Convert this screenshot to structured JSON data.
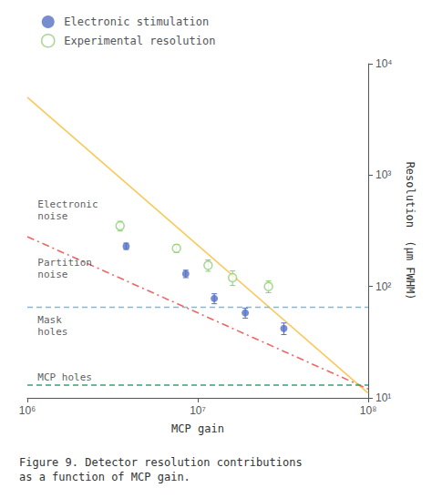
{
  "chart_data": {
    "type": "scatter",
    "log": true,
    "xlabel": "MCP gain",
    "ylabel": "Resolution  (μm FWHM)",
    "caption": "Figure 9. Detector resolution contributions\nas a function of MCP gain.",
    "xlim": [
      1000000,
      100000000
    ],
    "ylim": [
      10,
      10000
    ],
    "xticks": [
      {
        "value": 1000000,
        "label": "10⁶"
      },
      {
        "value": 10000000,
        "label": "10⁷"
      },
      {
        "value": 100000000,
        "label": "10⁸"
      }
    ],
    "yticks": [
      {
        "value": 10,
        "label": "10¹"
      },
      {
        "value": 100,
        "label": "10²"
      },
      {
        "value": 1000,
        "label": "10³"
      },
      {
        "value": 10000,
        "label": "10⁴"
      }
    ],
    "grid": false,
    "legend": "upper left",
    "series": [
      {
        "name": "Electronic stimulation",
        "type": "scatter",
        "marker": "circle",
        "x": [
          3800000,
          8500000,
          12500000,
          19000000,
          32000000
        ],
        "values": [
          230,
          130,
          78,
          58,
          42
        ],
        "yerr": [
          15,
          10,
          8,
          6,
          5
        ]
      },
      {
        "name": "Experimental resolution",
        "type": "scatter",
        "marker": "open_circle",
        "x": [
          3500000,
          7500000,
          11500000,
          16000000,
          26000000
        ],
        "values": [
          350,
          220,
          155,
          120,
          100
        ],
        "yerr": [
          35,
          18,
          18,
          18,
          12
        ]
      },
      {
        "type": "line",
        "line_style": "solid",
        "x": [
          1000000,
          100000000
        ],
        "values": [
          5000,
          11
        ]
      },
      {
        "type": "line",
        "line_style": "dashdot",
        "x": [
          1000000,
          100000000
        ],
        "values": [
          280,
          12
        ]
      },
      {
        "type": "line",
        "line_style": "dashed",
        "x": [
          1000000,
          100000000
        ],
        "values": [
          65,
          65
        ]
      },
      {
        "type": "line",
        "line_style": "dashed",
        "x": [
          1000000,
          100000000
        ],
        "values": [
          13,
          13
        ]
      }
    ],
    "annotations": [
      {
        "text": "Electronic\nnoise",
        "x": 1150000,
        "y": 620
      },
      {
        "text": "Partition\nnoise",
        "x": 1150000,
        "y": 185
      },
      {
        "text": "Mask\nholes",
        "x": 1150000,
        "y": 56
      },
      {
        "text": "MCP holes",
        "x": 1150000,
        "y": 12.5
      }
    ]
  }
}
